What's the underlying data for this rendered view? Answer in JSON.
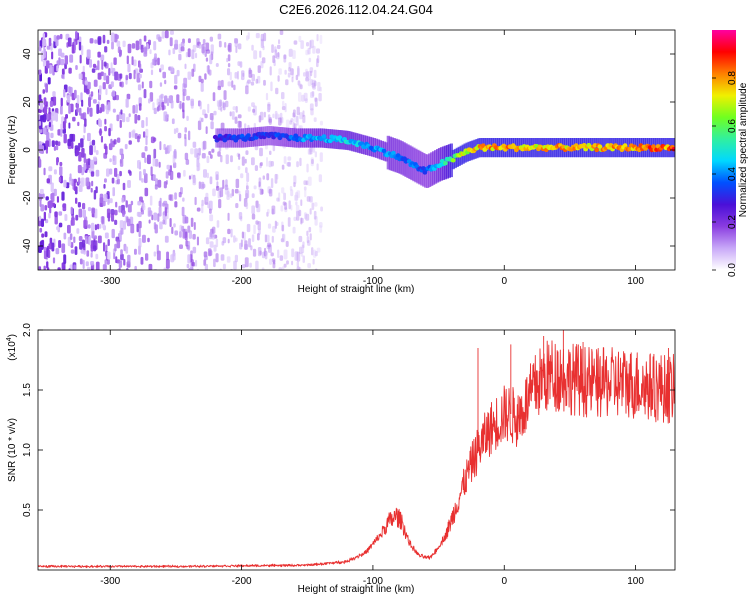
{
  "title": "C2E6.2026.112.04.24.G04",
  "chart_data": [
    {
      "type": "heatmap",
      "name": "spectrogram",
      "xlabel": "Height of straight line (km)",
      "ylabel": "Frequency (Hz)",
      "xlim": [
        -355,
        130
      ],
      "ylim": [
        -50,
        50
      ],
      "xticks": [
        -300,
        -200,
        -100,
        0,
        100
      ],
      "yticks": [
        -40,
        -20,
        0,
        20,
        40
      ],
      "colorbar": {
        "label": "Normalized spectral amplitude",
        "range": [
          0,
          1
        ],
        "ticks": [
          0.0,
          0.2,
          0.4,
          0.6,
          0.8
        ],
        "tick_labels": [
          "0.0",
          "0.2",
          "0.4",
          "0.6",
          "0.8"
        ],
        "colormap": [
          "#ffffff",
          "#c8a8f8",
          "#8a3ce0",
          "#4a10d8",
          "#0050ff",
          "#00d8ff",
          "#30f0a0",
          "#70ff20",
          "#f0f000",
          "#ff8000",
          "#ff0000",
          "#ff00a0"
        ]
      },
      "noise_region": {
        "x": [
          -355,
          -140
        ],
        "y": [
          -50,
          50
        ],
        "amplitude": [
          0.05,
          0.25
        ]
      },
      "ridge": {
        "x": [
          -220,
          -200,
          -180,
          -160,
          -140,
          -120,
          -100,
          -80,
          -70,
          -60,
          -50,
          -40,
          -30,
          -20,
          0,
          20,
          40,
          60,
          80,
          100,
          120,
          130
        ],
        "frequency": [
          5,
          5,
          6,
          5,
          5,
          4,
          1,
          -3,
          -6,
          -9,
          -6,
          -4,
          -1,
          1,
          1,
          1,
          1,
          1,
          1,
          1,
          1,
          1
        ],
        "amplitude": [
          0.3,
          0.35,
          0.32,
          0.38,
          0.45,
          0.48,
          0.42,
          0.4,
          0.38,
          0.35,
          0.45,
          0.6,
          0.72,
          0.78,
          0.82,
          0.75,
          0.78,
          0.76,
          0.8,
          0.82,
          0.85,
          0.85
        ]
      }
    },
    {
      "type": "line",
      "name": "snr",
      "xlabel": "Height of straight line (km)",
      "ylabel": "SNR (10 * v/v)",
      "scale_label": "(x10",
      "scale_exponent": "4",
      "xlim": [
        -355,
        130
      ],
      "ylim": [
        0,
        20000
      ],
      "xticks": [
        -300,
        -200,
        -100,
        0,
        100
      ],
      "yticks": [
        5000,
        10000,
        15000,
        20000
      ],
      "ytick_labels": [
        "0.5",
        "1.0",
        "1.5",
        "2.0"
      ],
      "color": "#e83030",
      "x": [
        -355,
        -300,
        -250,
        -200,
        -150,
        -120,
        -105,
        -95,
        -88,
        -82,
        -78,
        -72,
        -65,
        -57,
        -52,
        -45,
        -40,
        -35,
        -30,
        -25,
        -20,
        -15,
        -10,
        -5,
        0,
        5,
        10,
        15,
        20,
        25,
        30,
        35,
        40,
        50,
        60,
        70,
        80,
        90,
        100,
        110,
        120,
        130
      ],
      "y": [
        300,
        300,
        300,
        350,
        400,
        700,
        1500,
        2800,
        4000,
        4500,
        4000,
        2200,
        1200,
        1000,
        1600,
        2800,
        4200,
        5800,
        7400,
        8800,
        10000,
        11000,
        11800,
        12400,
        13000,
        13000,
        12600,
        13500,
        14500,
        15500,
        16000,
        16300,
        16300,
        16000,
        15800,
        15500,
        15600,
        15600,
        15500,
        15300,
        15200,
        15000
      ],
      "noise_amplitude": 0.12,
      "spikes": [
        {
          "x": -20,
          "y": 18500
        },
        {
          "x": 5,
          "y": 18800
        },
        {
          "x": 30,
          "y": 19500
        },
        {
          "x": 45,
          "y": 20000
        },
        {
          "x": 60,
          "y": 19000
        },
        {
          "x": 125,
          "y": 18500
        }
      ]
    }
  ]
}
